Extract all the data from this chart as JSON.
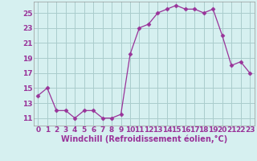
{
  "x": [
    0,
    1,
    2,
    3,
    4,
    5,
    6,
    7,
    8,
    9,
    10,
    11,
    12,
    13,
    14,
    15,
    16,
    17,
    18,
    19,
    20,
    21,
    22,
    23
  ],
  "y": [
    14,
    15,
    12,
    12,
    11,
    12,
    12,
    11,
    11,
    11.5,
    19.5,
    23,
    23.5,
    25,
    25.5,
    26,
    25.5,
    25.5,
    25,
    25.5,
    22,
    18,
    18.5,
    17
  ],
  "line_color": "#993399",
  "marker": "D",
  "marker_size": 2.5,
  "bg_color": "#d6f0f0",
  "grid_color": "#aacccc",
  "xlabel": "Windchill (Refroidissement éolien,°C)",
  "xlabel_fontsize": 7,
  "tick_fontsize": 6.5,
  "yticks": [
    11,
    13,
    15,
    17,
    19,
    21,
    23,
    25
  ],
  "ylim": [
    10.0,
    26.5
  ],
  "xlim": [
    -0.5,
    23.5
  ],
  "xtick_labels": [
    "0",
    "1",
    "2",
    "3",
    "4",
    "5",
    "6",
    "7",
    "8",
    "9",
    "10",
    "11",
    "12",
    "13",
    "14",
    "15",
    "16",
    "17",
    "18",
    "19",
    "20",
    "21",
    "22",
    "23"
  ]
}
